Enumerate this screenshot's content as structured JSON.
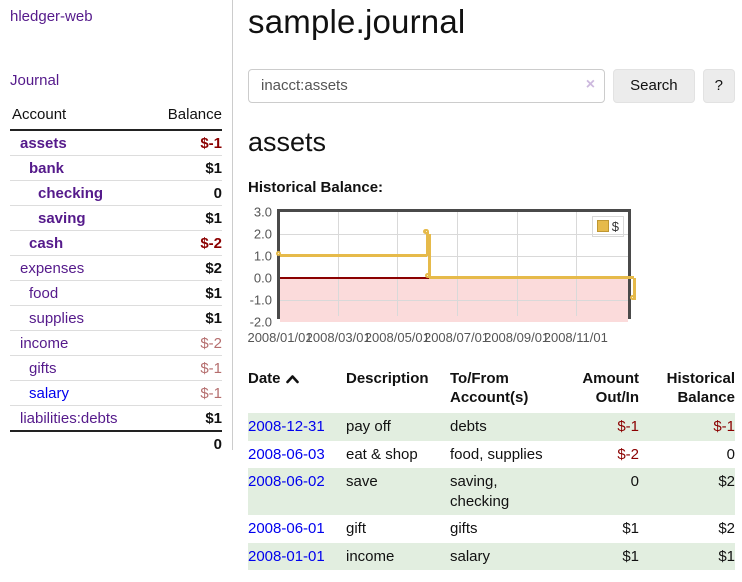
{
  "sidebar": {
    "brand": "hledger-web",
    "journal_link": "Journal",
    "header": {
      "account": "Account",
      "balance": "Balance"
    },
    "accounts": [
      {
        "name": "assets",
        "balance": "$-1",
        "depth": 0,
        "bold": true,
        "link_color": "purple"
      },
      {
        "name": "bank",
        "balance": "$1",
        "depth": 1,
        "bold": true,
        "link_color": "purple"
      },
      {
        "name": "checking",
        "balance": "0",
        "depth": 2,
        "bold": true,
        "link_color": "purple"
      },
      {
        "name": "saving",
        "balance": "$1",
        "depth": 2,
        "bold": true,
        "link_color": "purple"
      },
      {
        "name": "cash",
        "balance": "$-2",
        "depth": 1,
        "bold": true,
        "link_color": "purple"
      },
      {
        "name": "expenses",
        "balance": "$2",
        "depth": 0,
        "bold": false,
        "link_color": "purple"
      },
      {
        "name": "food",
        "balance": "$1",
        "depth": 1,
        "bold": false,
        "link_color": "purple"
      },
      {
        "name": "supplies",
        "balance": "$1",
        "depth": 1,
        "bold": false,
        "link_color": "purple"
      },
      {
        "name": "income",
        "balance": "$-2",
        "depth": 0,
        "bold": false,
        "link_color": "purple"
      },
      {
        "name": "gifts",
        "balance": "$-1",
        "depth": 1,
        "bold": false,
        "link_color": "purple"
      },
      {
        "name": "salary",
        "balance": "$-1",
        "depth": 1,
        "bold": false,
        "link_color": "blue"
      },
      {
        "name": "liabilities:debts",
        "balance": "$1",
        "depth": 0,
        "bold": false,
        "link_color": "purple"
      }
    ],
    "total": "0"
  },
  "main": {
    "title": "sample.journal",
    "search": {
      "value": "inacct:assets",
      "clear_icon": "×",
      "search_button": "Search",
      "help_button": "?"
    },
    "account_heading": "assets",
    "chart_title": "Historical Balance:"
  },
  "chart_data": {
    "type": "line",
    "step": true,
    "title": "Historical Balance",
    "x_range": [
      "2008-01-01",
      "2008-12-31"
    ],
    "ylim": [
      -2,
      3
    ],
    "y_ticks": [
      "3.0",
      "2.0",
      "1.0",
      "0.0",
      "-1.0",
      "-2.0"
    ],
    "x_ticks": [
      "2008/01/01",
      "2008/03/01",
      "2008/05/01",
      "2008/07/01",
      "2008/09/01",
      "2008/11/01"
    ],
    "series": [
      {
        "name": "$",
        "color": "#e6ba4a",
        "points": [
          [
            "2008-01-01",
            1
          ],
          [
            "2008-06-01",
            2
          ],
          [
            "2008-06-02",
            2
          ],
          [
            "2008-06-03",
            0
          ],
          [
            "2008-12-31",
            -1
          ]
        ]
      }
    ],
    "legend": {
      "label": "$",
      "position": "top-right"
    },
    "colors": {
      "negative_region": "#fbdbdb",
      "zero_line": "#8b0000",
      "grid": "#d9d9d9",
      "border": "#4a4a4a"
    }
  },
  "register": {
    "headers": {
      "date": "Date",
      "description": "Description",
      "accounts": "To/From Account(s)",
      "amount": "Amount Out/In",
      "balance": "Historical Balance"
    },
    "rows": [
      {
        "date": "2008-12-31",
        "description": "pay off",
        "accounts": "debts",
        "amount": "$-1",
        "balance": "$-1"
      },
      {
        "date": "2008-06-03",
        "description": "eat & shop",
        "accounts": "food, supplies",
        "amount": "$-2",
        "balance": "0"
      },
      {
        "date": "2008-06-02",
        "description": "save",
        "accounts": "saving, checking",
        "amount": "0",
        "balance": "$2"
      },
      {
        "date": "2008-06-01",
        "description": "gift",
        "accounts": "gifts",
        "amount": "$1",
        "balance": "$2"
      },
      {
        "date": "2008-01-01",
        "description": "income",
        "accounts": "salary",
        "amount": "$1",
        "balance": "$1"
      }
    ]
  },
  "colors": {
    "link_purple": "#551a8b",
    "link_blue": "#0000ee",
    "negative_strong": "#8b0000",
    "negative_soft": "#b56e6e",
    "row_shade_green": "#e2eee0",
    "accent_gold": "#e6ba4a"
  }
}
